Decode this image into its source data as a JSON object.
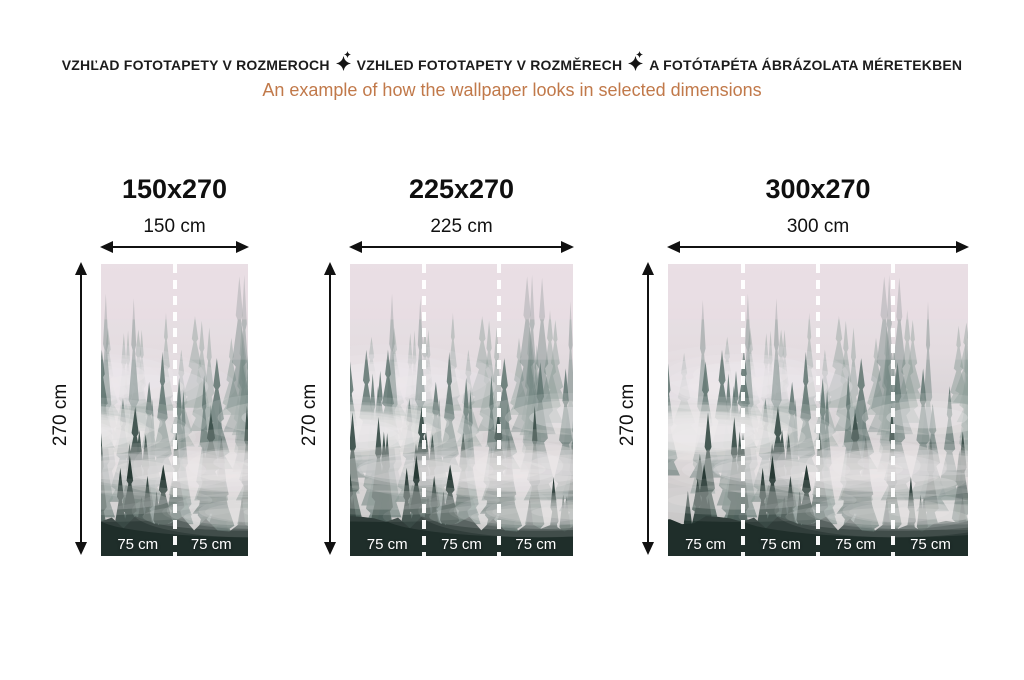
{
  "header": {
    "line1_parts": [
      "VZHĽAD FOTOTAPETY V ROZMEROCH",
      "VZHLED FOTOTAPETY V ROZMĚRECH",
      "A FOTÓTAPÉTA ÁBRÁZOLATA MÉRETEKBEN"
    ],
    "separator_icon": "sparkle-icon",
    "subtitle": "An example of how the wallpaper looks in selected dimensions"
  },
  "colors": {
    "heading_dark": "#1c1c1c",
    "subtitle_orange": "#c1794a",
    "arrow_black": "#111111",
    "panel_label_white": "#ffffff",
    "fog_top_pink": "#ebe3e8",
    "forest_dark_green": "#1f2e2a"
  },
  "previews": [
    {
      "title": "150x270",
      "width_label": "150 cm",
      "height_label": "270 cm",
      "panel_count": 2,
      "panel_labels": [
        "75 cm",
        "75 cm"
      ]
    },
    {
      "title": "225x270",
      "width_label": "225 cm",
      "height_label": "270 cm",
      "panel_count": 3,
      "panel_labels": [
        "75 cm",
        "75 cm",
        "75 cm"
      ]
    },
    {
      "title": "300x270",
      "width_label": "300 cm",
      "height_label": "270 cm",
      "panel_count": 4,
      "panel_labels": [
        "75 cm",
        "75 cm",
        "75 cm",
        "75 cm"
      ]
    }
  ]
}
